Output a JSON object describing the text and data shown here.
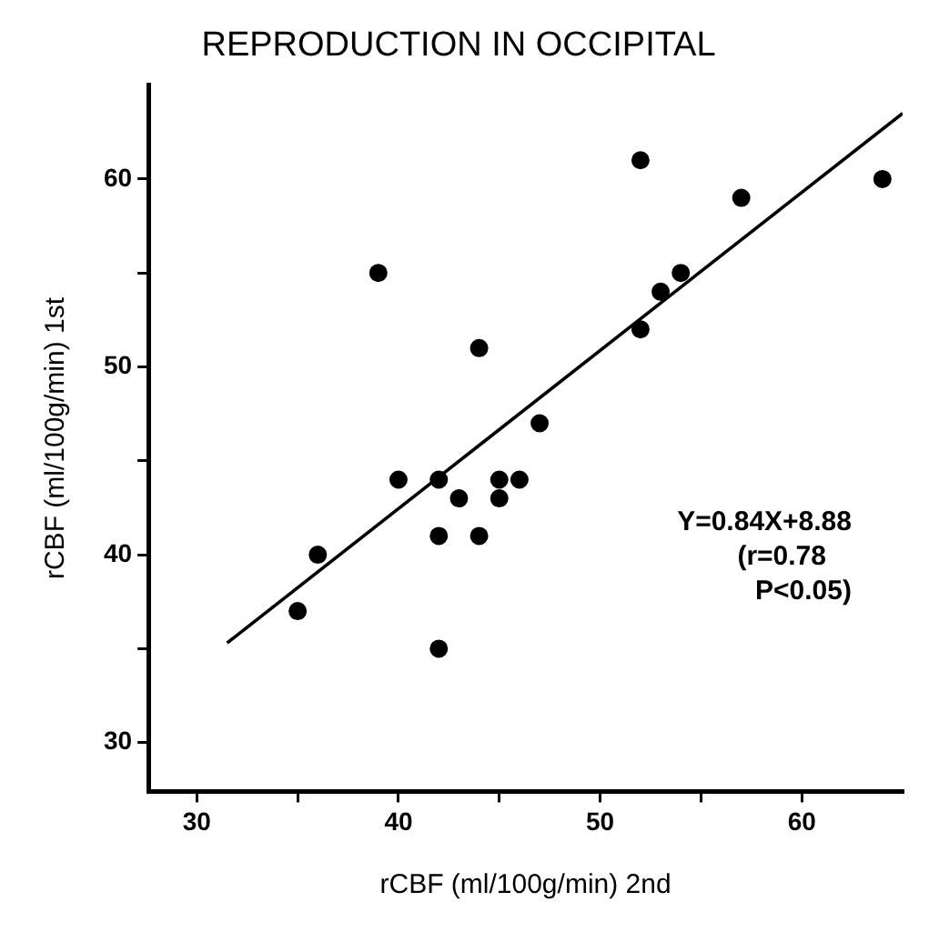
{
  "chart_data": {
    "type": "scatter",
    "title": "REPRODUCTION IN OCCIPITAL",
    "xlabel": "rCBF (ml/100g/min) 2nd",
    "ylabel": "rCBF (ml/100g/min) 1st",
    "series": [
      {
        "color": "#000000",
        "marker": "circle",
        "x": [
          35,
          36,
          40,
          42,
          43,
          42,
          44,
          45,
          45,
          46,
          42,
          39,
          44,
          47,
          52,
          52,
          53,
          54,
          57,
          64
        ],
        "values": [
          37,
          40,
          44,
          44,
          43,
          41,
          41,
          44,
          43,
          44,
          35,
          55,
          51,
          47,
          61,
          52,
          54,
          55,
          59,
          60
        ]
      },
      {
        "type": "line",
        "color": "#000000",
        "marker": "none",
        "line_style": "solid",
        "x": [
          31.5,
          65
        ],
        "values": [
          35.3,
          63.5
        ]
      }
    ],
    "xlim": [
      27.6,
      65
    ],
    "ylim": [
      27.4,
      65
    ],
    "xticks": [
      30,
      {
        "value": 35,
        "label": null
      },
      40,
      {
        "value": 45,
        "label": null
      },
      50,
      {
        "value": 55,
        "label": null
      },
      60
    ],
    "yticks": [
      30,
      {
        "value": 35,
        "label": null
      },
      40,
      {
        "value": 45,
        "label": null
      },
      50,
      {
        "value": 55,
        "label": null
      },
      60
    ],
    "annotations": [
      "Y=0.84X+8.88",
      "(r=0.78",
      "P<0.05)"
    ],
    "grid": false,
    "legend": false
  }
}
